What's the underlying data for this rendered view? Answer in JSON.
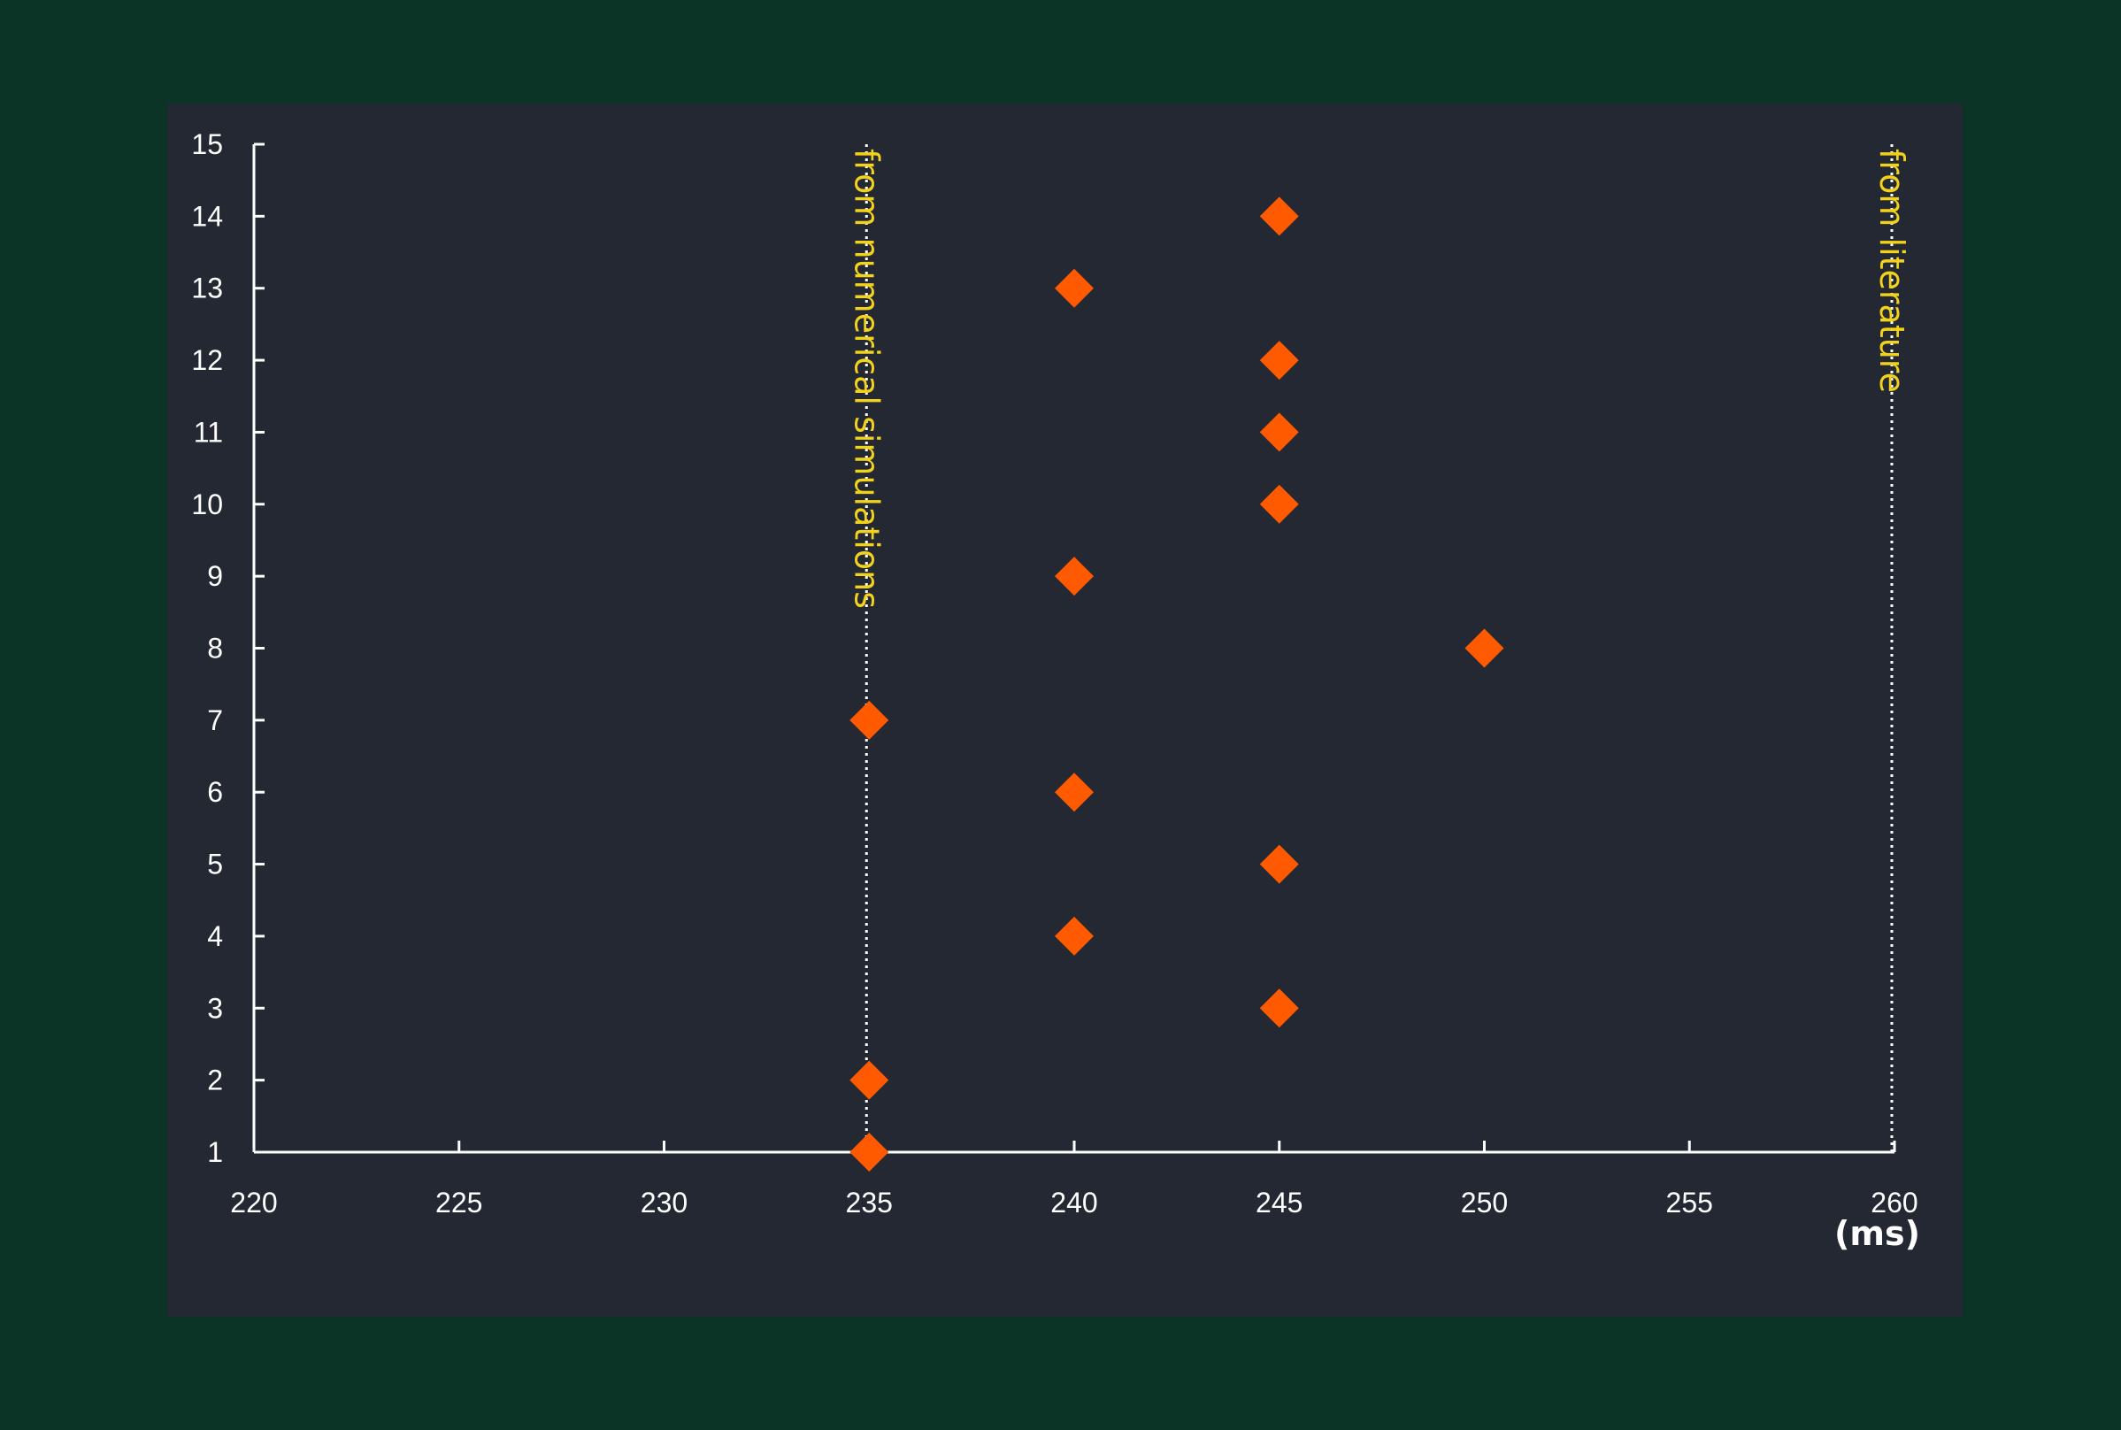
{
  "chart_data": {
    "type": "scatter",
    "title": "",
    "xlabel": "",
    "ylabel": "",
    "x_unit": "(ms)",
    "xlim": [
      220,
      260
    ],
    "ylim": [
      1,
      15
    ],
    "xticks": [
      220,
      225,
      230,
      235,
      240,
      245,
      250,
      255,
      260
    ],
    "yticks": [
      1,
      2,
      3,
      4,
      5,
      6,
      7,
      8,
      9,
      10,
      11,
      12,
      13,
      14,
      15
    ],
    "grid": false,
    "marker": "diamond",
    "series": [
      {
        "points": [
          {
            "x": 235,
            "y": 1
          },
          {
            "x": 235,
            "y": 2
          },
          {
            "x": 245,
            "y": 3
          },
          {
            "x": 240,
            "y": 4
          },
          {
            "x": 245,
            "y": 5
          },
          {
            "x": 240,
            "y": 6
          },
          {
            "x": 235,
            "y": 7
          },
          {
            "x": 250,
            "y": 8
          },
          {
            "x": 240,
            "y": 9
          },
          {
            "x": 245,
            "y": 10
          },
          {
            "x": 245,
            "y": 11
          },
          {
            "x": 245,
            "y": 12
          },
          {
            "x": 240,
            "y": 13
          },
          {
            "x": 245,
            "y": 14
          }
        ]
      }
    ],
    "reference_lines": [
      {
        "x": 235,
        "label": "from numerical simulations"
      },
      {
        "x": 260,
        "label": "from literature"
      }
    ]
  },
  "colors": {
    "page_background": "#0b3326",
    "panel_background": "#232833",
    "axis": "#ffffff",
    "marker": "#ff5a00",
    "reference_label": "#f2d21b"
  }
}
